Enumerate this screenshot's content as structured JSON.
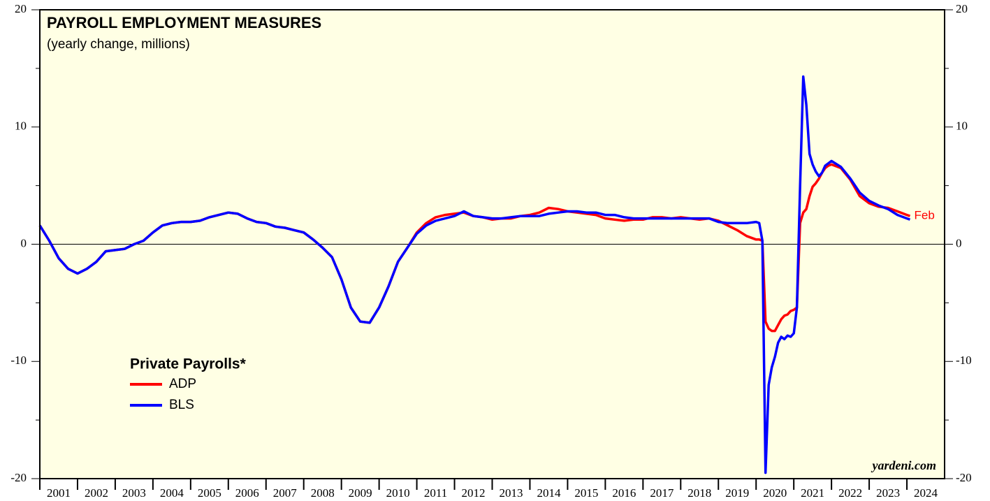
{
  "chart_data": {
    "type": "line",
    "title": "PAYROLL EMPLOYMENT MEASURES",
    "subtitle": "(yearly change, millions)",
    "legend_title": "Private Payrolls*",
    "annotation": "Feb",
    "source": "yardeni.com",
    "x": [
      2001,
      2001.25,
      2001.5,
      2001.75,
      2002,
      2002.25,
      2002.5,
      2002.75,
      2003,
      2003.25,
      2003.5,
      2003.75,
      2004,
      2004.25,
      2004.5,
      2004.75,
      2005,
      2005.25,
      2005.5,
      2005.75,
      2006,
      2006.25,
      2006.5,
      2006.75,
      2007,
      2007.25,
      2007.5,
      2007.75,
      2008,
      2008.25,
      2008.5,
      2008.75,
      2009,
      2009.25,
      2009.5,
      2009.75,
      2010,
      2010.25,
      2010.5,
      2010.75,
      2011,
      2011.25,
      2011.5,
      2011.75,
      2012,
      2012.25,
      2012.5,
      2012.75,
      2013,
      2013.25,
      2013.5,
      2013.75,
      2014,
      2014.25,
      2014.5,
      2014.75,
      2015,
      2015.25,
      2015.5,
      2015.75,
      2016,
      2016.25,
      2016.5,
      2016.75,
      2017,
      2017.25,
      2017.5,
      2017.75,
      2018,
      2018.25,
      2018.5,
      2018.75,
      2019,
      2019.25,
      2019.5,
      2019.75,
      2020,
      2020.083,
      2020.167,
      2020.25,
      2020.333,
      2020.417,
      2020.5,
      2020.583,
      2020.667,
      2020.75,
      2020.833,
      2020.917,
      2021,
      2021.083,
      2021.167,
      2021.25,
      2021.333,
      2021.417,
      2021.5,
      2021.583,
      2021.667,
      2021.75,
      2021.833,
      2021.917,
      2022,
      2022.25,
      2022.5,
      2022.75,
      2023,
      2023.25,
      2023.5,
      2023.75,
      2024,
      2024.083
    ],
    "series": [
      {
        "name": "ADP",
        "color": "#ff0000",
        "values": [
          1.6,
          0.3,
          -1.2,
          -2.1,
          -2.5,
          -2.1,
          -1.5,
          -0.6,
          -0.5,
          -0.4,
          0.0,
          0.3,
          1.0,
          1.6,
          1.8,
          1.9,
          1.9,
          2.0,
          2.3,
          2.5,
          2.7,
          2.6,
          2.2,
          1.9,
          1.8,
          1.5,
          1.4,
          1.2,
          1.0,
          0.4,
          -0.3,
          -1.1,
          -3.0,
          -5.4,
          -6.6,
          -6.7,
          -5.4,
          -3.6,
          -1.5,
          -0.3,
          1.0,
          1.8,
          2.3,
          2.5,
          2.6,
          2.7,
          2.4,
          2.3,
          2.1,
          2.2,
          2.2,
          2.4,
          2.5,
          2.7,
          3.1,
          3.0,
          2.8,
          2.7,
          2.6,
          2.5,
          2.2,
          2.1,
          2.0,
          2.1,
          2.1,
          2.3,
          2.3,
          2.2,
          2.3,
          2.2,
          2.1,
          2.2,
          2.0,
          1.6,
          1.2,
          0.7,
          0.4,
          0.4,
          0.3,
          -6.6,
          -7.2,
          -7.4,
          -7.4,
          -6.9,
          -6.4,
          -6.1,
          -6.0,
          -5.7,
          -5.6,
          -5.4,
          1.8,
          2.7,
          3.0,
          4.1,
          4.9,
          5.2,
          5.6,
          6.1,
          6.5,
          6.7,
          6.8,
          6.5,
          5.5,
          4.1,
          3.5,
          3.2,
          3.1,
          2.8,
          2.5,
          2.4
        ]
      },
      {
        "name": "BLS",
        "color": "#0000ff",
        "values": [
          1.6,
          0.3,
          -1.2,
          -2.1,
          -2.5,
          -2.1,
          -1.5,
          -0.6,
          -0.5,
          -0.4,
          0.0,
          0.3,
          1.0,
          1.6,
          1.8,
          1.9,
          1.9,
          2.0,
          2.3,
          2.5,
          2.7,
          2.6,
          2.2,
          1.9,
          1.8,
          1.5,
          1.4,
          1.2,
          1.0,
          0.4,
          -0.3,
          -1.1,
          -3.0,
          -5.4,
          -6.6,
          -6.7,
          -5.4,
          -3.6,
          -1.5,
          -0.3,
          0.9,
          1.6,
          2.0,
          2.2,
          2.4,
          2.8,
          2.4,
          2.3,
          2.2,
          2.2,
          2.3,
          2.4,
          2.4,
          2.4,
          2.6,
          2.7,
          2.8,
          2.8,
          2.7,
          2.7,
          2.5,
          2.5,
          2.3,
          2.2,
          2.2,
          2.2,
          2.2,
          2.2,
          2.2,
          2.2,
          2.2,
          2.2,
          1.9,
          1.8,
          1.8,
          1.8,
          1.9,
          1.8,
          0.3,
          -19.5,
          -12.0,
          -10.5,
          -9.6,
          -8.4,
          -7.9,
          -8.1,
          -7.8,
          -7.9,
          -7.6,
          -5.4,
          5.0,
          14.3,
          11.9,
          7.7,
          6.8,
          6.2,
          5.8,
          6.1,
          6.7,
          6.9,
          7.1,
          6.6,
          5.6,
          4.4,
          3.7,
          3.3,
          3.0,
          2.5,
          2.2,
          2.1
        ]
      }
    ],
    "xlim": [
      2001,
      2025
    ],
    "xticks": [
      {
        "value": 2001,
        "label": "2001"
      },
      {
        "value": 2002,
        "label": "2002"
      },
      {
        "value": 2003,
        "label": "2003"
      },
      {
        "value": 2004,
        "label": "2004"
      },
      {
        "value": 2005,
        "label": "2005"
      },
      {
        "value": 2006,
        "label": "2006"
      },
      {
        "value": 2007,
        "label": "2007"
      },
      {
        "value": 2008,
        "label": "2008"
      },
      {
        "value": 2009,
        "label": "2009"
      },
      {
        "value": 2010,
        "label": "2010"
      },
      {
        "value": 2011,
        "label": "2011"
      },
      {
        "value": 2012,
        "label": "2012"
      },
      {
        "value": 2013,
        "label": "2013"
      },
      {
        "value": 2014,
        "label": "2014"
      },
      {
        "value": 2015,
        "label": "2015"
      },
      {
        "value": 2016,
        "label": "2016"
      },
      {
        "value": 2017,
        "label": "2017"
      },
      {
        "value": 2018,
        "label": "2018"
      },
      {
        "value": 2019,
        "label": "2019"
      },
      {
        "value": 2020,
        "label": "2020"
      },
      {
        "value": 2021,
        "label": "2021"
      },
      {
        "value": 2022,
        "label": "2022"
      },
      {
        "value": 2023,
        "label": "2023"
      },
      {
        "value": 2024,
        "label": "2024"
      }
    ],
    "ylim": [
      -20,
      20
    ],
    "yticks": [
      -20,
      -10,
      0,
      10,
      20
    ],
    "yminorticks": [
      -15,
      -5,
      5,
      15
    ],
    "zero_line": true
  }
}
